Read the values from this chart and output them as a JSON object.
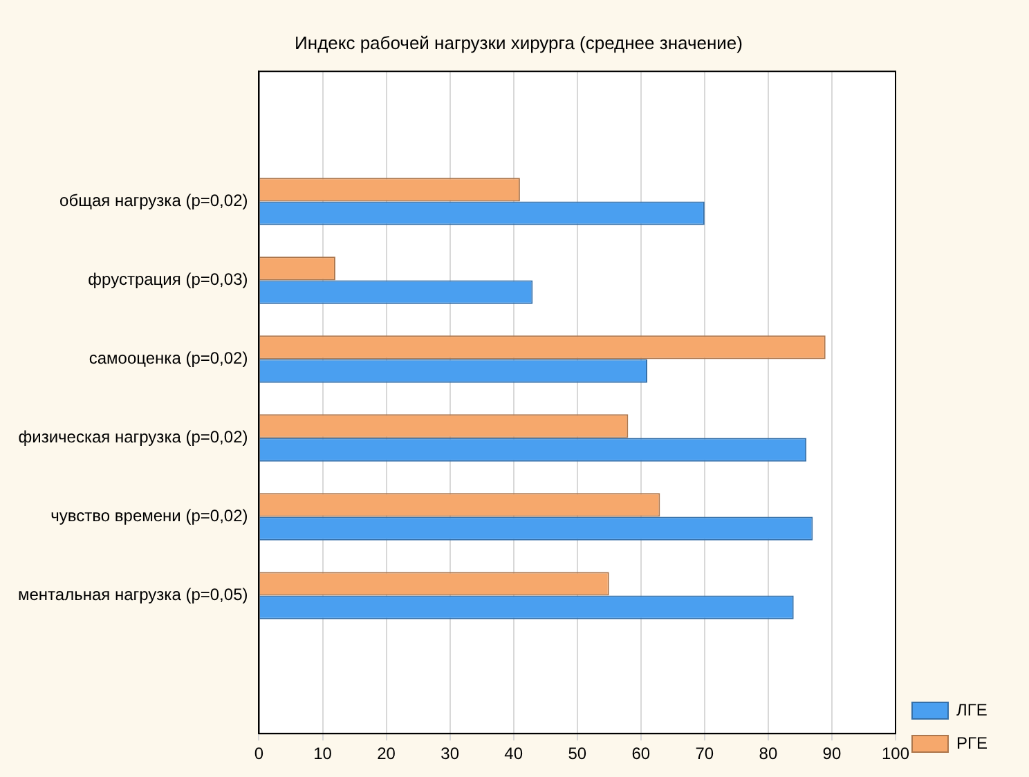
{
  "chart_data": {
    "type": "bar",
    "orientation": "horizontal",
    "title": "Индекс рабочей нагрузки хирурга (среднее значение)",
    "categories": [
      "общая нагрузка (p=0,02)",
      "фрустрация (p=0,03)",
      "самооценка (p=0,02)",
      "физическая нагрузка (p=0,02)",
      "чувство времени (p=0,02)",
      "ментальная нагрузка (p=0,05)"
    ],
    "series": [
      {
        "name": "РГЕ",
        "color": "#f6a86c",
        "values": [
          41,
          12,
          89,
          58,
          63,
          55
        ]
      },
      {
        "name": "ЛГЕ",
        "color": "#4a9ff0",
        "values": [
          70,
          43,
          61,
          86,
          87,
          84
        ]
      }
    ],
    "xlim": [
      0,
      100
    ],
    "xticks": [
      0,
      10,
      20,
      30,
      40,
      50,
      60,
      70,
      80,
      90,
      100
    ],
    "grid": "x",
    "legend": "bottom right"
  }
}
